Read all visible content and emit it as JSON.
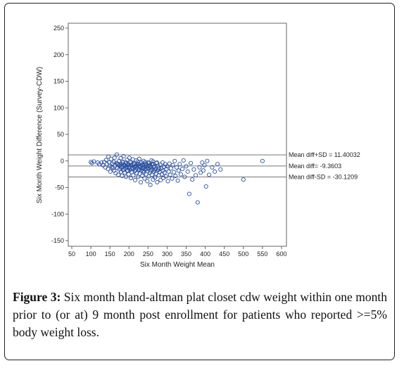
{
  "chart_data": {
    "type": "scatter",
    "xlabel": "Six Month Weight Mean",
    "ylabel": "Six Month Weight Difference (Survey-CDW)",
    "xlim": [
      50,
      600
    ],
    "ylim": [
      -150,
      250
    ],
    "xticks": [
      50,
      100,
      150,
      200,
      250,
      300,
      350,
      400,
      450,
      500,
      550,
      600
    ],
    "yticks": [
      -150,
      -100,
      -50,
      0,
      50,
      100,
      150,
      200,
      250
    ],
    "marker_color": "#2b4f9e",
    "reference_lines": [
      {
        "y": 11.40032,
        "label": "Mean diff+SD = 11.40032"
      },
      {
        "y": -9.3603,
        "label": "Mean diff= -9.3603"
      },
      {
        "y": -30.1209,
        "label": "Mean diff-SD = -30.1209"
      }
    ],
    "points": [
      [
        100,
        -2
      ],
      [
        103,
        -4
      ],
      [
        108,
        -1
      ],
      [
        118,
        -3
      ],
      [
        122,
        -6
      ],
      [
        128,
        -3
      ],
      [
        132,
        -8
      ],
      [
        135,
        -2
      ],
      [
        138,
        -12
      ],
      [
        140,
        2
      ],
      [
        142,
        -6
      ],
      [
        145,
        -15
      ],
      [
        146,
        8
      ],
      [
        148,
        -3
      ],
      [
        150,
        -9
      ],
      [
        151,
        -20
      ],
      [
        153,
        4
      ],
      [
        155,
        -11
      ],
      [
        156,
        -5
      ],
      [
        158,
        -14
      ],
      [
        160,
        -2
      ],
      [
        161,
        -18
      ],
      [
        162,
        6
      ],
      [
        164,
        -9
      ],
      [
        165,
        -23
      ],
      [
        167,
        -4
      ],
      [
        168,
        12
      ],
      [
        170,
        -13
      ],
      [
        171,
        -7
      ],
      [
        172,
        -26
      ],
      [
        174,
        0
      ],
      [
        175,
        -16
      ],
      [
        176,
        -10
      ],
      [
        178,
        5
      ],
      [
        179,
        -20
      ],
      [
        180,
        -6
      ],
      [
        181,
        -12
      ],
      [
        182,
        -28
      ],
      [
        184,
        -3
      ],
      [
        185,
        -17
      ],
      [
        186,
        9
      ],
      [
        188,
        -9
      ],
      [
        189,
        -22
      ],
      [
        190,
        -14
      ],
      [
        191,
        -4
      ],
      [
        192,
        -30
      ],
      [
        194,
        -11
      ],
      [
        195,
        2
      ],
      [
        196,
        -19
      ],
      [
        198,
        -7
      ],
      [
        199,
        -25
      ],
      [
        200,
        -13
      ],
      [
        201,
        6
      ],
      [
        202,
        -17
      ],
      [
        204,
        -8
      ],
      [
        205,
        -32
      ],
      [
        206,
        -3
      ],
      [
        207,
        -21
      ],
      [
        209,
        -12
      ],
      [
        210,
        3
      ],
      [
        211,
        -27
      ],
      [
        212,
        -15
      ],
      [
        214,
        -6
      ],
      [
        215,
        -19
      ],
      [
        216,
        -36
      ],
      [
        218,
        -10
      ],
      [
        219,
        1
      ],
      [
        220,
        -23
      ],
      [
        221,
        -14
      ],
      [
        222,
        -5
      ],
      [
        224,
        -30
      ],
      [
        225,
        -17
      ],
      [
        226,
        -9
      ],
      [
        227,
        4
      ],
      [
        228,
        -24
      ],
      [
        230,
        -12
      ],
      [
        231,
        -40
      ],
      [
        232,
        -18
      ],
      [
        234,
        -7
      ],
      [
        235,
        -28
      ],
      [
        236,
        -13
      ],
      [
        238,
        0
      ],
      [
        239,
        -21
      ],
      [
        240,
        -9
      ],
      [
        241,
        -33
      ],
      [
        242,
        -16
      ],
      [
        244,
        -5
      ],
      [
        245,
        -25
      ],
      [
        246,
        -11
      ],
      [
        248,
        -38
      ],
      [
        249,
        -19
      ],
      [
        250,
        -3
      ],
      [
        251,
        -14
      ],
      [
        252,
        -29
      ],
      [
        254,
        -8
      ],
      [
        255,
        -22
      ],
      [
        256,
        -45
      ],
      [
        258,
        -12
      ],
      [
        259,
        1
      ],
      [
        260,
        -26
      ],
      [
        262,
        -16
      ],
      [
        263,
        -35
      ],
      [
        264,
        -6
      ],
      [
        266,
        -20
      ],
      [
        267,
        -10
      ],
      [
        268,
        -31
      ],
      [
        270,
        -15
      ],
      [
        271,
        -24
      ],
      [
        272,
        -4
      ],
      [
        274,
        -40
      ],
      [
        275,
        -18
      ],
      [
        276,
        -9
      ],
      [
        278,
        -27
      ],
      [
        279,
        -13
      ],
      [
        280,
        -21
      ],
      [
        282,
        -7
      ],
      [
        283,
        -36
      ],
      [
        285,
        -14
      ],
      [
        286,
        -25
      ],
      [
        288,
        -3
      ],
      [
        289,
        -18
      ],
      [
        290,
        -32
      ],
      [
        292,
        -11
      ],
      [
        293,
        -22
      ],
      [
        295,
        -6
      ],
      [
        297,
        -29
      ],
      [
        298,
        -15
      ],
      [
        300,
        -10
      ],
      [
        302,
        -38
      ],
      [
        304,
        -20
      ],
      [
        306,
        -5
      ],
      [
        308,
        -26
      ],
      [
        310,
        -14
      ],
      [
        313,
        -33
      ],
      [
        315,
        -8
      ],
      [
        318,
        -21
      ],
      [
        320,
        0
      ],
      [
        322,
        -28
      ],
      [
        325,
        -12
      ],
      [
        328,
        -37
      ],
      [
        330,
        -18
      ],
      [
        333,
        -6
      ],
      [
        336,
        -25
      ],
      [
        340,
        -15
      ],
      [
        343,
        1
      ],
      [
        346,
        -30
      ],
      [
        350,
        -10
      ],
      [
        354,
        -20
      ],
      [
        358,
        -62
      ],
      [
        362,
        -4
      ],
      [
        366,
        -35
      ],
      [
        370,
        -16
      ],
      [
        375,
        -27
      ],
      [
        380,
        -78
      ],
      [
        385,
        -12
      ],
      [
        388,
        -22
      ],
      [
        392,
        -3
      ],
      [
        395,
        -18
      ],
      [
        398,
        -8
      ],
      [
        402,
        -48
      ],
      [
        405,
        0
      ],
      [
        410,
        -26
      ],
      [
        418,
        -12
      ],
      [
        425,
        -20
      ],
      [
        432,
        -6
      ],
      [
        440,
        -16
      ],
      [
        500,
        -35
      ],
      [
        550,
        0
      ],
      [
        170,
        -5
      ],
      [
        175,
        -8
      ],
      [
        180,
        -10
      ],
      [
        185,
        -7
      ],
      [
        190,
        -9
      ],
      [
        195,
        -6
      ],
      [
        200,
        -10
      ],
      [
        205,
        -8
      ],
      [
        210,
        -7
      ],
      [
        215,
        -11
      ],
      [
        220,
        -9
      ],
      [
        225,
        -6
      ],
      [
        230,
        -10
      ],
      [
        235,
        -8
      ],
      [
        240,
        -12
      ],
      [
        245,
        -7
      ],
      [
        250,
        -9
      ],
      [
        255,
        -10
      ],
      [
        260,
        -6
      ],
      [
        265,
        -11
      ],
      [
        183,
        -1
      ],
      [
        193,
        -3
      ],
      [
        203,
        -2
      ],
      [
        213,
        -4
      ],
      [
        223,
        -1
      ],
      [
        233,
        -3
      ],
      [
        243,
        -2
      ],
      [
        253,
        -4
      ],
      [
        263,
        -1
      ],
      [
        273,
        -3
      ],
      [
        187,
        -16
      ],
      [
        197,
        -18
      ],
      [
        207,
        -15
      ],
      [
        217,
        -17
      ],
      [
        227,
        -16
      ],
      [
        237,
        -19
      ],
      [
        247,
        -15
      ],
      [
        257,
        -18
      ],
      [
        267,
        -17
      ],
      [
        277,
        -16
      ]
    ]
  },
  "caption": {
    "figure_label": "Figure 3:",
    "text": " Six month bland-altman plat closet cdw weight within one month prior to (or at) 9 month post enrollment for patients who reported >=5% body weight loss."
  }
}
